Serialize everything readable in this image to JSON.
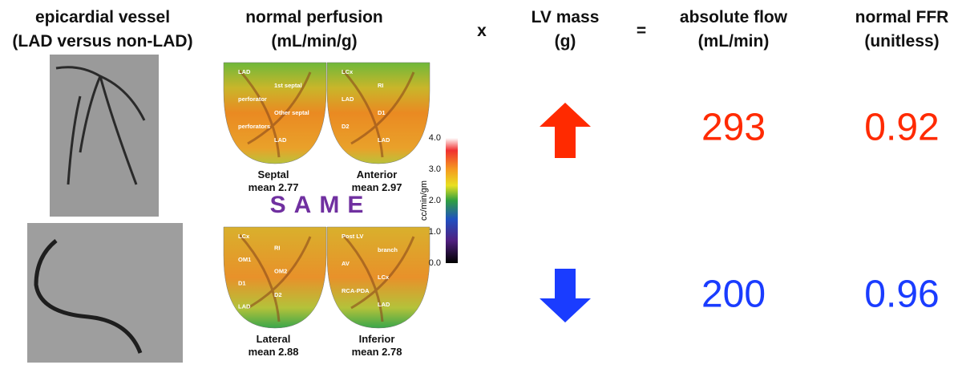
{
  "headers": {
    "vessel": [
      "epicardial vessel",
      "(LAD versus non-LAD)"
    ],
    "perfusion": [
      "normal perfusion",
      "(mL/min/g)"
    ],
    "times": "x",
    "mass": [
      "LV mass",
      "(g)"
    ],
    "equals": "=",
    "flow": [
      "absolute flow",
      "(mL/min)"
    ],
    "ffr": [
      "normal FFR",
      "(unitless)"
    ]
  },
  "maps": [
    {
      "name": "Septal",
      "mean": "mean 2.77",
      "labels": [
        "LAD",
        "1st septal",
        "perforator",
        "Other septal",
        "perforators",
        "LAD"
      ]
    },
    {
      "name": "Anterior",
      "mean": "mean 2.97",
      "labels": [
        "LCx",
        "RI",
        "LAD",
        "D1",
        "D2",
        "LAD"
      ]
    },
    {
      "name": "Lateral",
      "mean": "mean 2.88",
      "labels": [
        "LCx",
        "RI",
        "OM1",
        "OM2",
        "D1",
        "D2",
        "LAD"
      ]
    },
    {
      "name": "Inferior",
      "mean": "mean 2.78",
      "labels": [
        "Post LV",
        "branch",
        "AV",
        "LCx",
        "RCA-PDA",
        "LAD"
      ]
    }
  ],
  "same": "SAME",
  "colorbar": {
    "label": "cc/min/gm",
    "ticks": [
      "4.0",
      "3.0",
      "2.0",
      "1.0",
      "0.0"
    ]
  },
  "rows": [
    {
      "flow": "293",
      "ffr": "0.92"
    },
    {
      "flow": "200",
      "ffr": "0.96"
    }
  ]
}
